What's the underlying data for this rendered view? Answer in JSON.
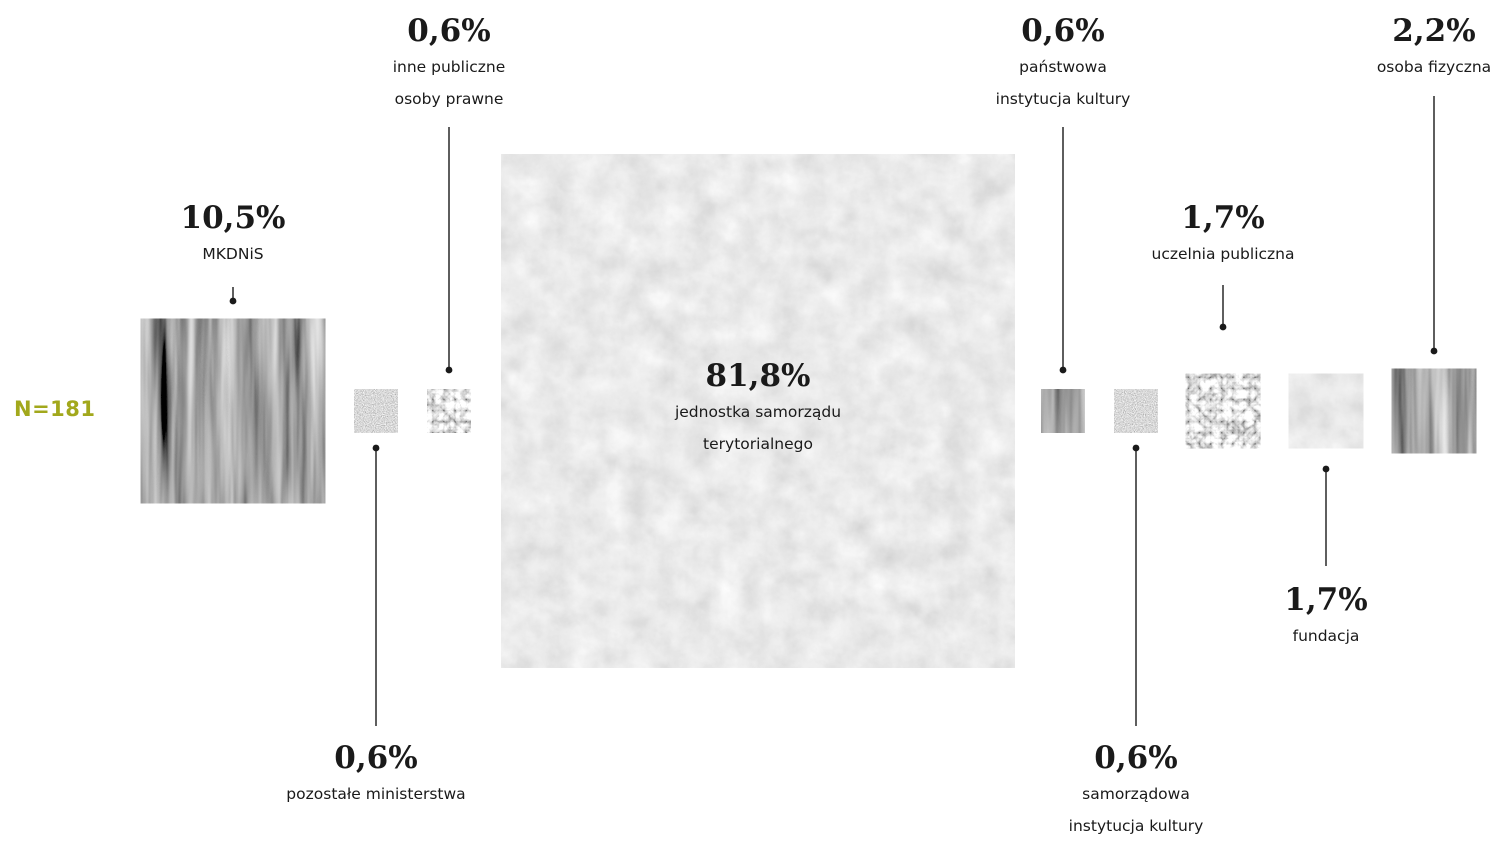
{
  "n_label": "N=181",
  "chart_data": {
    "type": "area",
    "categories": [
      "MKDNiS",
      "pozostałe ministerstwa",
      "inne publiczne osoby prawne",
      "jednostka samorządu terytorialnego",
      "państwowa instytucja kultury",
      "samorządowa instytucja kultury",
      "uczelnia publiczna",
      "fundacja",
      "osoba fizyczna"
    ],
    "values": [
      10.5,
      0.6,
      0.6,
      81.8,
      0.6,
      0.6,
      1.7,
      1.7,
      2.2
    ],
    "value_labels": [
      "10,5%",
      "0,6%",
      "0,6%",
      "81,8%",
      "0,6%",
      "0,6%",
      "1,7%",
      "1,7%",
      "2,2%"
    ],
    "label_lines": [
      [
        "MKDNiS"
      ],
      [
        "pozostałe ministerstwa"
      ],
      [
        "inne publiczne",
        "osoby prawne"
      ],
      [
        "jednostka samorządu",
        "terytorialnego"
      ],
      [
        "państwowa",
        "instytucja kultury"
      ],
      [
        "samorządowa",
        "instytucja kultury"
      ],
      [
        "uczelnia publiczna"
      ],
      [
        "fundacja"
      ],
      [
        "osoba fizyczna"
      ]
    ],
    "textures": [
      "vertical-streaks",
      "noise",
      "fibers",
      "concrete",
      "vertical-streaks",
      "noise",
      "fibers",
      "concrete",
      "vertical-streaks"
    ],
    "colors": {
      "accent": "#a2a81c",
      "text": "#1a1a1a",
      "line": "#1a1a1a"
    }
  }
}
